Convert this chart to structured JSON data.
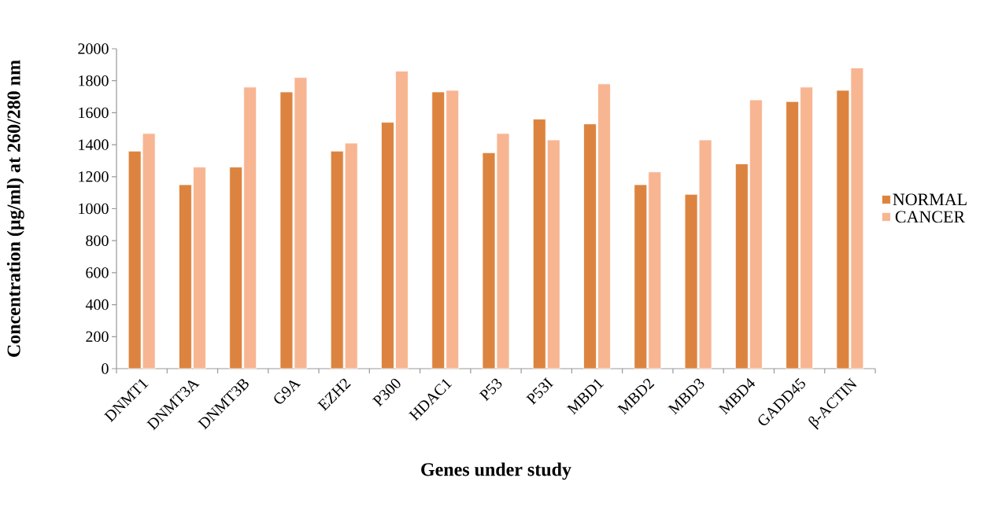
{
  "chart_data": {
    "type": "bar",
    "xlabel": "Genes under study",
    "ylabel": "Concentration (µg/ml) at 260/280 nm",
    "categories": [
      "DNMT1",
      "DNMT3A",
      "DNMT3B",
      "G9A",
      "EZH2",
      "P300",
      "HDAC1",
      "P53",
      "P53I",
      "MBD1",
      "MBD2",
      "MBD3",
      "MBD4",
      "GADD45",
      "β-ACTIN"
    ],
    "series": [
      {
        "name": "NORMAL",
        "color": "#dc843f",
        "values": [
          1360,
          1150,
          1260,
          1730,
          1360,
          1540,
          1730,
          1350,
          1560,
          1530,
          1150,
          1090,
          1280,
          1670,
          1740
        ]
      },
      {
        "name": "CANCER",
        "color": "#f8b592",
        "values": [
          1470,
          1260,
          1760,
          1820,
          1410,
          1860,
          1740,
          1470,
          1430,
          1780,
          1230,
          1430,
          1680,
          1760,
          1880
        ]
      }
    ],
    "ylim": [
      0,
      2000
    ],
    "yticks": [
      0,
      200,
      400,
      600,
      800,
      1000,
      1200,
      1400,
      1600,
      1800,
      2000
    ],
    "grid": false,
    "legend": "right"
  }
}
